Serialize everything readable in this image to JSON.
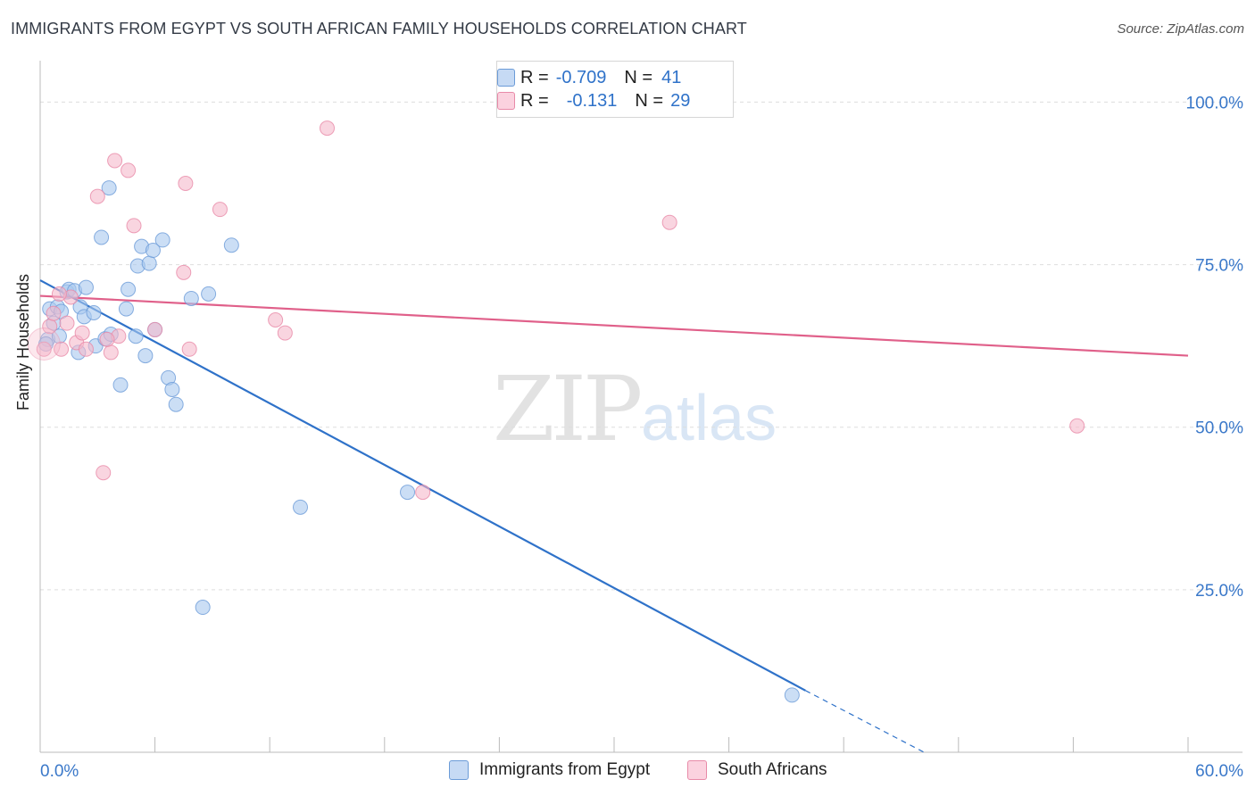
{
  "header": {
    "title": "IMMIGRANTS FROM EGYPT VS SOUTH AFRICAN FAMILY HOUSEHOLDS CORRELATION CHART",
    "source": "Source: ZipAtlas.com"
  },
  "legend": {
    "rows": [
      {
        "r_label": "R =",
        "r_value": "-0.709",
        "n_label": "N =",
        "n_value": "41",
        "color": "#a9c8ef"
      },
      {
        "r_label": "R =",
        "r_value": "-0.131",
        "n_label": "N =",
        "n_value": "29",
        "color": "#f5b9cc"
      }
    ]
  },
  "bottom_legend": {
    "egypt": "Immigrants from Egypt",
    "south_african": "South Africans"
  },
  "watermark": {
    "zip": "ZIP",
    "atlas": "atlas"
  },
  "chart_data": {
    "type": "scatter",
    "ylabel": "Family Households",
    "xlim": [
      0,
      60
    ],
    "ylim": [
      0,
      105
    ],
    "x_tick_labels": [
      "0.0%",
      "60.0%"
    ],
    "y_ticks": [
      25,
      50,
      75,
      100
    ],
    "y_tick_labels": [
      "25.0%",
      "50.0%",
      "75.0%",
      "100.0%"
    ],
    "grid": true,
    "colors": {
      "egypt": "#2f72c9",
      "south_african": "#e0608a",
      "egypt_fill": "#a9c8ef",
      "sa_fill": "#f5b9cc",
      "tick_text": "#3a78c9"
    },
    "series": [
      {
        "name": "Immigrants from Egypt",
        "points": [
          [
            0.4,
            63.5
          ],
          [
            0.5,
            68.2
          ],
          [
            0.7,
            66.0
          ],
          [
            0.9,
            68.5
          ],
          [
            1.0,
            64.0
          ],
          [
            1.1,
            67.8
          ],
          [
            1.4,
            70.8
          ],
          [
            1.5,
            71.2
          ],
          [
            1.8,
            71.0
          ],
          [
            2.0,
            61.5
          ],
          [
            2.1,
            68.5
          ],
          [
            2.3,
            67.0
          ],
          [
            2.4,
            71.5
          ],
          [
            2.8,
            67.6
          ],
          [
            2.9,
            62.5
          ],
          [
            3.2,
            79.2
          ],
          [
            3.4,
            63.6
          ],
          [
            3.6,
            86.8
          ],
          [
            3.7,
            64.3
          ],
          [
            4.2,
            56.5
          ],
          [
            4.5,
            68.2
          ],
          [
            4.6,
            71.2
          ],
          [
            5.0,
            64.0
          ],
          [
            5.1,
            74.8
          ],
          [
            5.3,
            77.8
          ],
          [
            5.5,
            61.0
          ],
          [
            5.7,
            75.2
          ],
          [
            5.9,
            77.2
          ],
          [
            6.0,
            65.0
          ],
          [
            6.4,
            78.8
          ],
          [
            6.7,
            57.6
          ],
          [
            6.9,
            55.8
          ],
          [
            7.1,
            53.5
          ],
          [
            7.9,
            69.8
          ],
          [
            8.5,
            22.3
          ],
          [
            8.8,
            70.5
          ],
          [
            10.0,
            78.0
          ],
          [
            13.6,
            37.7
          ],
          [
            19.2,
            40.0
          ],
          [
            39.3,
            8.8
          ],
          [
            0.3,
            62.8
          ]
        ]
      },
      {
        "name": "South Africans",
        "points": [
          [
            0.2,
            62.0
          ],
          [
            0.5,
            65.5
          ],
          [
            0.7,
            67.5
          ],
          [
            1.1,
            62.0
          ],
          [
            1.4,
            66.0
          ],
          [
            1.6,
            70.0
          ],
          [
            1.9,
            63.0
          ],
          [
            2.2,
            64.5
          ],
          [
            2.4,
            62.0
          ],
          [
            3.0,
            85.5
          ],
          [
            3.3,
            43.0
          ],
          [
            3.7,
            61.5
          ],
          [
            3.9,
            91.0
          ],
          [
            4.1,
            64.0
          ],
          [
            4.6,
            89.5
          ],
          [
            4.9,
            81.0
          ],
          [
            6.0,
            65.0
          ],
          [
            7.5,
            73.8
          ],
          [
            7.6,
            87.5
          ],
          [
            7.8,
            62.0
          ],
          [
            9.4,
            83.5
          ],
          [
            12.3,
            66.5
          ],
          [
            12.8,
            64.5
          ],
          [
            15.0,
            96.0
          ],
          [
            20.0,
            40.0
          ],
          [
            32.9,
            81.5
          ],
          [
            54.2,
            50.2
          ],
          [
            1.0,
            70.5
          ],
          [
            3.5,
            63.5
          ]
        ]
      }
    ],
    "trend_lines": [
      {
        "series": "Immigrants from Egypt",
        "x": [
          0,
          40
        ],
        "y": [
          72.6,
          9.5
        ],
        "dashed_x": [
          40,
          46.2
        ],
        "dashed_y": [
          9.5,
          0
        ]
      },
      {
        "series": "South Africans",
        "x": [
          0,
          60
        ],
        "y": [
          70.2,
          61.0
        ]
      }
    ]
  }
}
